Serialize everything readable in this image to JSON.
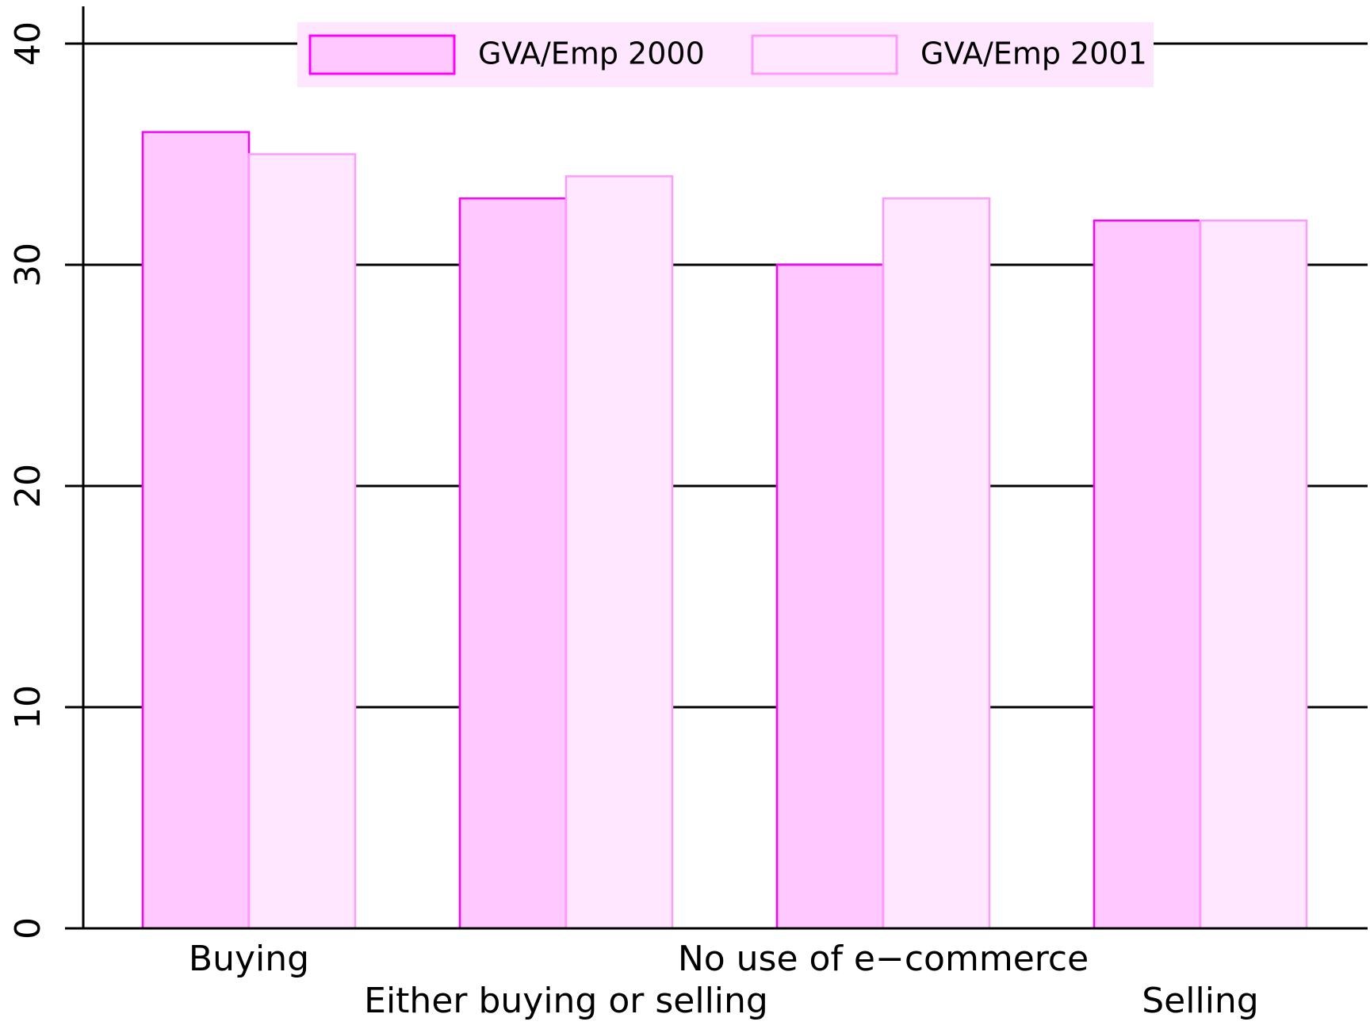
{
  "chart_data": {
    "type": "bar",
    "categories": [
      "Buying",
      "Either buying or selling",
      "No use of e−commerce",
      "Selling"
    ],
    "series": [
      {
        "name": "GVA/Emp 2000",
        "color": "#ffc8ff",
        "edge": "#ff00ff",
        "values": [
          36,
          33,
          30,
          32
        ]
      },
      {
        "name": "GVA/Emp 2001",
        "color": "#ffe8ff",
        "edge": "#ff99ff",
        "values": [
          35,
          34,
          33,
          32
        ]
      }
    ],
    "ylim": [
      0,
      40
    ],
    "yticks": [
      0,
      10,
      20,
      30,
      40
    ],
    "grid": true,
    "legend": "top"
  }
}
